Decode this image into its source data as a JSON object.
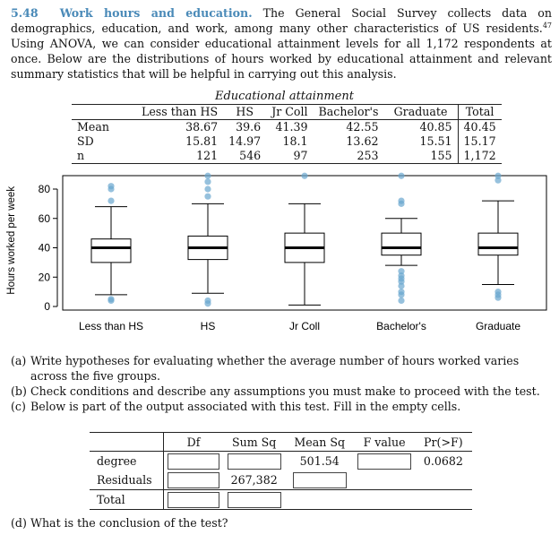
{
  "problem": {
    "number": "5.48",
    "title": "Work hours and education.",
    "intro": "The General Social Survey collects data on demographics, education, and work, among many other characteristics of US residents.",
    "footnote": "47",
    "intro_cont": "Using ANOVA, we can consider educational attainment levels for all 1,172 respondents at once. Below are the distributions of hours worked by educational attainment and relevant summary statistics that will be helpful in carrying out this analysis."
  },
  "stats_table": {
    "caption": "Educational attainment",
    "columns": [
      "Less than HS",
      "HS",
      "Jr Coll",
      "Bachelor's",
      "Graduate",
      "Total"
    ],
    "rows": [
      {
        "label": "Mean",
        "values": [
          "38.67",
          "39.6",
          "41.39",
          "42.55",
          "40.85",
          "40.45"
        ]
      },
      {
        "label": "SD",
        "values": [
          "15.81",
          "14.97",
          "18.1",
          "13.62",
          "15.51",
          "15.17"
        ]
      },
      {
        "label": "n",
        "values": [
          "121",
          "546",
          "97",
          "253",
          "155",
          "1,172"
        ]
      }
    ]
  },
  "chart_data": {
    "type": "box",
    "ylabel": "Hours worked per week",
    "yticks": [
      0,
      20,
      40,
      60,
      80
    ],
    "ylim": [
      0,
      90
    ],
    "categories": [
      "Less than HS",
      "HS",
      "Jr Coll",
      "Bachelor's",
      "Graduate"
    ],
    "box_color": "#000000",
    "outlier_color": "#6aa6cf",
    "boxes": [
      {
        "name": "Less than HS",
        "whisker_low": 8,
        "q1": 30,
        "median": 40,
        "q3": 46,
        "whisker_high": 68,
        "outliers": [
          4,
          5,
          72,
          80,
          82
        ]
      },
      {
        "name": "HS",
        "whisker_low": 9,
        "q1": 32,
        "median": 40,
        "q3": 48,
        "whisker_high": 70,
        "outliers": [
          2,
          4,
          75,
          80,
          85,
          89
        ]
      },
      {
        "name": "Jr Coll",
        "whisker_low": 1,
        "q1": 30,
        "median": 40,
        "q3": 50,
        "whisker_high": 70,
        "outliers": [
          89
        ]
      },
      {
        "name": "Bachelor's",
        "whisker_low": 28,
        "q1": 35,
        "median": 40,
        "q3": 50,
        "whisker_high": 60,
        "outliers": [
          4,
          8,
          10,
          14,
          17,
          19,
          21,
          24,
          70,
          72,
          89
        ]
      },
      {
        "name": "Graduate",
        "whisker_low": 15,
        "q1": 35,
        "median": 40,
        "q3": 50,
        "whisker_high": 72,
        "outliers": [
          6,
          8,
          10,
          86,
          89
        ]
      }
    ]
  },
  "questions": [
    {
      "label": "(a)",
      "text": "Write hypotheses for evaluating whether the average number of hours worked varies across the five groups."
    },
    {
      "label": "(b)",
      "text": "Check conditions and describe any assumptions you must make to proceed with the test."
    },
    {
      "label": "(c)",
      "text": "Below is part of the output associated with this test. Fill in the empty cells."
    }
  ],
  "anova_table": {
    "headers": [
      "Df",
      "Sum Sq",
      "Mean Sq",
      "F value",
      "Pr(>F)"
    ],
    "rows": [
      {
        "label": "degree",
        "cells": [
          "",
          "",
          "501.54",
          "",
          "0.0682"
        ]
      },
      {
        "label": "Residuals",
        "cells": [
          "",
          "267,382",
          "",
          "",
          ""
        ]
      },
      {
        "label": "Total",
        "cells": [
          "",
          "",
          "",
          "",
          ""
        ]
      }
    ]
  },
  "question_d": {
    "label": "(d)",
    "text": "What is the conclusion of the test?"
  }
}
